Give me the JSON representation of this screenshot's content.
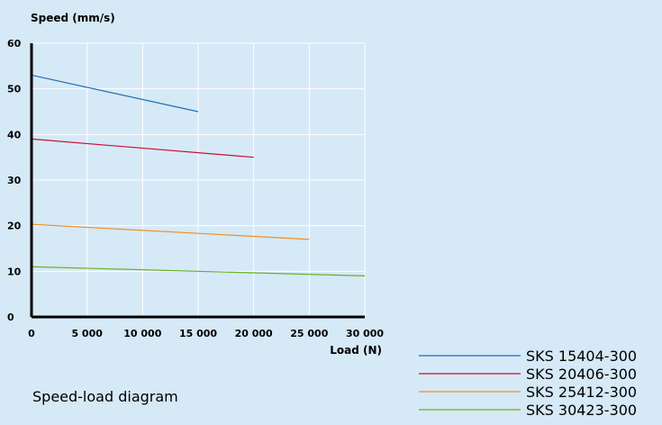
{
  "chart_data": {
    "type": "line",
    "title": "",
    "caption": "Speed-load diagram",
    "xlabel": "Load (N)",
    "ylabel": "Speed (mm/s)",
    "xlim": [
      0,
      30000
    ],
    "ylim": [
      0,
      60
    ],
    "x_ticks": [
      0,
      5000,
      10000,
      15000,
      20000,
      25000,
      30000
    ],
    "x_tick_labels": [
      "0",
      "5 000",
      "10 000",
      "15 000",
      "20 000",
      "25 000",
      "30 000"
    ],
    "y_ticks": [
      0,
      10,
      20,
      30,
      40,
      50,
      60
    ],
    "y_tick_labels": [
      "0",
      "10",
      "20",
      "30",
      "40",
      "50",
      "60"
    ],
    "grid": true,
    "legend_position": "bottom-right",
    "series": [
      {
        "name": "SKS 15404-300",
        "color": "#1f6fb5",
        "x": [
          0,
          15000
        ],
        "y": [
          53,
          45
        ]
      },
      {
        "name": "SKS 20406-300",
        "color": "#c8102e",
        "x": [
          0,
          20000
        ],
        "y": [
          39,
          35
        ]
      },
      {
        "name": "SKS 25412-300",
        "color": "#f0901e",
        "x": [
          0,
          25000
        ],
        "y": [
          20.3,
          17
        ]
      },
      {
        "name": "SKS 30423-300",
        "color": "#6ab023",
        "x": [
          0,
          30000
        ],
        "y": [
          11,
          9
        ]
      }
    ]
  }
}
